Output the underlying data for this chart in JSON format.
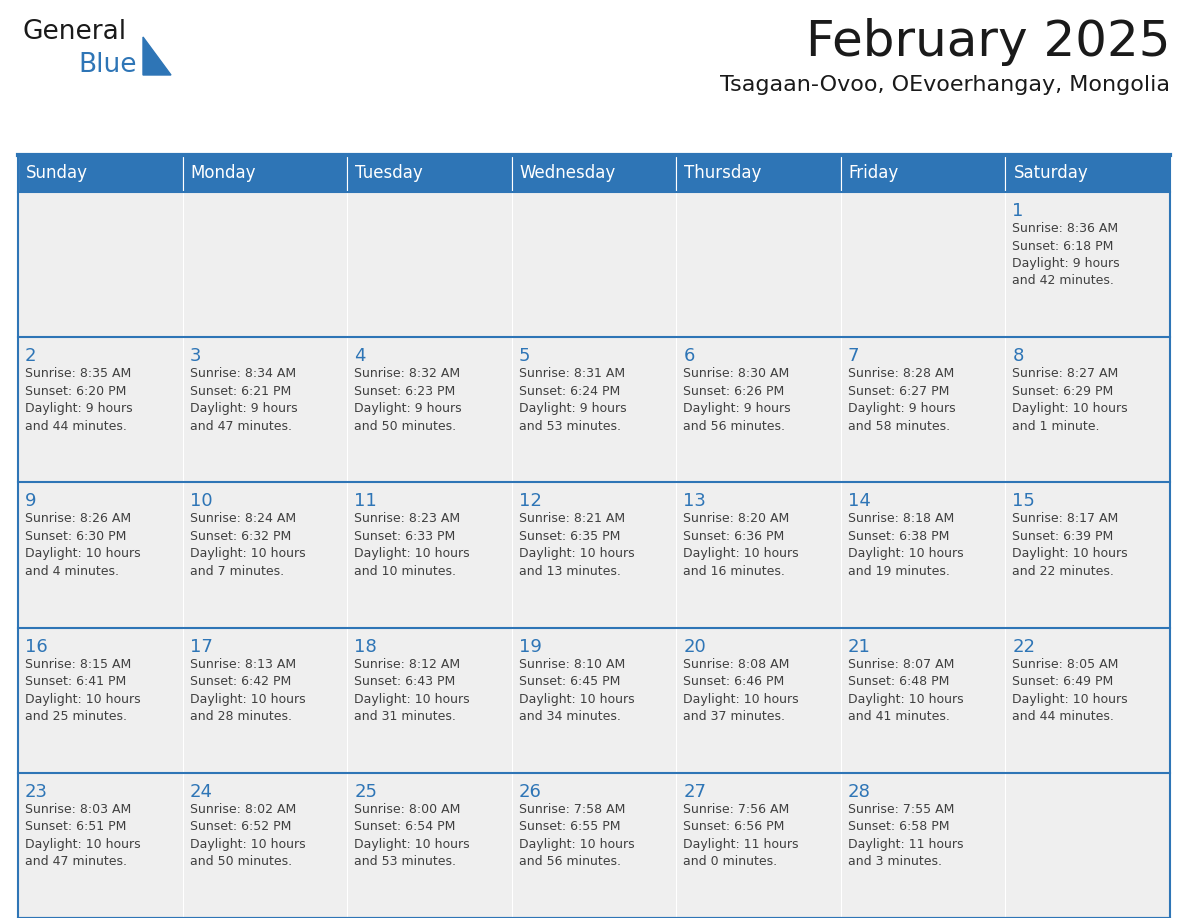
{
  "title": "February 2025",
  "subtitle": "Tsagaan-Ovoo, OEvoerhangay, Mongolia",
  "header_bg": "#2E75B6",
  "header_text_color": "#FFFFFF",
  "cell_bg": "#EFEFEF",
  "day_number_color": "#2E75B6",
  "info_text_color": "#404040",
  "grid_line_color": "#2E75B6",
  "bg_color": "#FFFFFF",
  "days_of_week": [
    "Sunday",
    "Monday",
    "Tuesday",
    "Wednesday",
    "Thursday",
    "Friday",
    "Saturday"
  ],
  "weeks": [
    [
      {
        "day": null,
        "info": ""
      },
      {
        "day": null,
        "info": ""
      },
      {
        "day": null,
        "info": ""
      },
      {
        "day": null,
        "info": ""
      },
      {
        "day": null,
        "info": ""
      },
      {
        "day": null,
        "info": ""
      },
      {
        "day": 1,
        "info": "Sunrise: 8:36 AM\nSunset: 6:18 PM\nDaylight: 9 hours\nand 42 minutes."
      }
    ],
    [
      {
        "day": 2,
        "info": "Sunrise: 8:35 AM\nSunset: 6:20 PM\nDaylight: 9 hours\nand 44 minutes."
      },
      {
        "day": 3,
        "info": "Sunrise: 8:34 AM\nSunset: 6:21 PM\nDaylight: 9 hours\nand 47 minutes."
      },
      {
        "day": 4,
        "info": "Sunrise: 8:32 AM\nSunset: 6:23 PM\nDaylight: 9 hours\nand 50 minutes."
      },
      {
        "day": 5,
        "info": "Sunrise: 8:31 AM\nSunset: 6:24 PM\nDaylight: 9 hours\nand 53 minutes."
      },
      {
        "day": 6,
        "info": "Sunrise: 8:30 AM\nSunset: 6:26 PM\nDaylight: 9 hours\nand 56 minutes."
      },
      {
        "day": 7,
        "info": "Sunrise: 8:28 AM\nSunset: 6:27 PM\nDaylight: 9 hours\nand 58 minutes."
      },
      {
        "day": 8,
        "info": "Sunrise: 8:27 AM\nSunset: 6:29 PM\nDaylight: 10 hours\nand 1 minute."
      }
    ],
    [
      {
        "day": 9,
        "info": "Sunrise: 8:26 AM\nSunset: 6:30 PM\nDaylight: 10 hours\nand 4 minutes."
      },
      {
        "day": 10,
        "info": "Sunrise: 8:24 AM\nSunset: 6:32 PM\nDaylight: 10 hours\nand 7 minutes."
      },
      {
        "day": 11,
        "info": "Sunrise: 8:23 AM\nSunset: 6:33 PM\nDaylight: 10 hours\nand 10 minutes."
      },
      {
        "day": 12,
        "info": "Sunrise: 8:21 AM\nSunset: 6:35 PM\nDaylight: 10 hours\nand 13 minutes."
      },
      {
        "day": 13,
        "info": "Sunrise: 8:20 AM\nSunset: 6:36 PM\nDaylight: 10 hours\nand 16 minutes."
      },
      {
        "day": 14,
        "info": "Sunrise: 8:18 AM\nSunset: 6:38 PM\nDaylight: 10 hours\nand 19 minutes."
      },
      {
        "day": 15,
        "info": "Sunrise: 8:17 AM\nSunset: 6:39 PM\nDaylight: 10 hours\nand 22 minutes."
      }
    ],
    [
      {
        "day": 16,
        "info": "Sunrise: 8:15 AM\nSunset: 6:41 PM\nDaylight: 10 hours\nand 25 minutes."
      },
      {
        "day": 17,
        "info": "Sunrise: 8:13 AM\nSunset: 6:42 PM\nDaylight: 10 hours\nand 28 minutes."
      },
      {
        "day": 18,
        "info": "Sunrise: 8:12 AM\nSunset: 6:43 PM\nDaylight: 10 hours\nand 31 minutes."
      },
      {
        "day": 19,
        "info": "Sunrise: 8:10 AM\nSunset: 6:45 PM\nDaylight: 10 hours\nand 34 minutes."
      },
      {
        "day": 20,
        "info": "Sunrise: 8:08 AM\nSunset: 6:46 PM\nDaylight: 10 hours\nand 37 minutes."
      },
      {
        "day": 21,
        "info": "Sunrise: 8:07 AM\nSunset: 6:48 PM\nDaylight: 10 hours\nand 41 minutes."
      },
      {
        "day": 22,
        "info": "Sunrise: 8:05 AM\nSunset: 6:49 PM\nDaylight: 10 hours\nand 44 minutes."
      }
    ],
    [
      {
        "day": 23,
        "info": "Sunrise: 8:03 AM\nSunset: 6:51 PM\nDaylight: 10 hours\nand 47 minutes."
      },
      {
        "day": 24,
        "info": "Sunrise: 8:02 AM\nSunset: 6:52 PM\nDaylight: 10 hours\nand 50 minutes."
      },
      {
        "day": 25,
        "info": "Sunrise: 8:00 AM\nSunset: 6:54 PM\nDaylight: 10 hours\nand 53 minutes."
      },
      {
        "day": 26,
        "info": "Sunrise: 7:58 AM\nSunset: 6:55 PM\nDaylight: 10 hours\nand 56 minutes."
      },
      {
        "day": 27,
        "info": "Sunrise: 7:56 AM\nSunset: 6:56 PM\nDaylight: 11 hours\nand 0 minutes."
      },
      {
        "day": 28,
        "info": "Sunrise: 7:55 AM\nSunset: 6:58 PM\nDaylight: 11 hours\nand 3 minutes."
      },
      {
        "day": null,
        "info": ""
      }
    ]
  ],
  "logo_text1": "General",
  "logo_text2": "Blue",
  "logo_color1": "#1a1a1a",
  "logo_color2": "#2E75B6",
  "logo_triangle_color": "#2E75B6",
  "title_fontsize": 36,
  "subtitle_fontsize": 16,
  "header_fontsize": 12,
  "day_num_fontsize": 13,
  "info_fontsize": 9
}
